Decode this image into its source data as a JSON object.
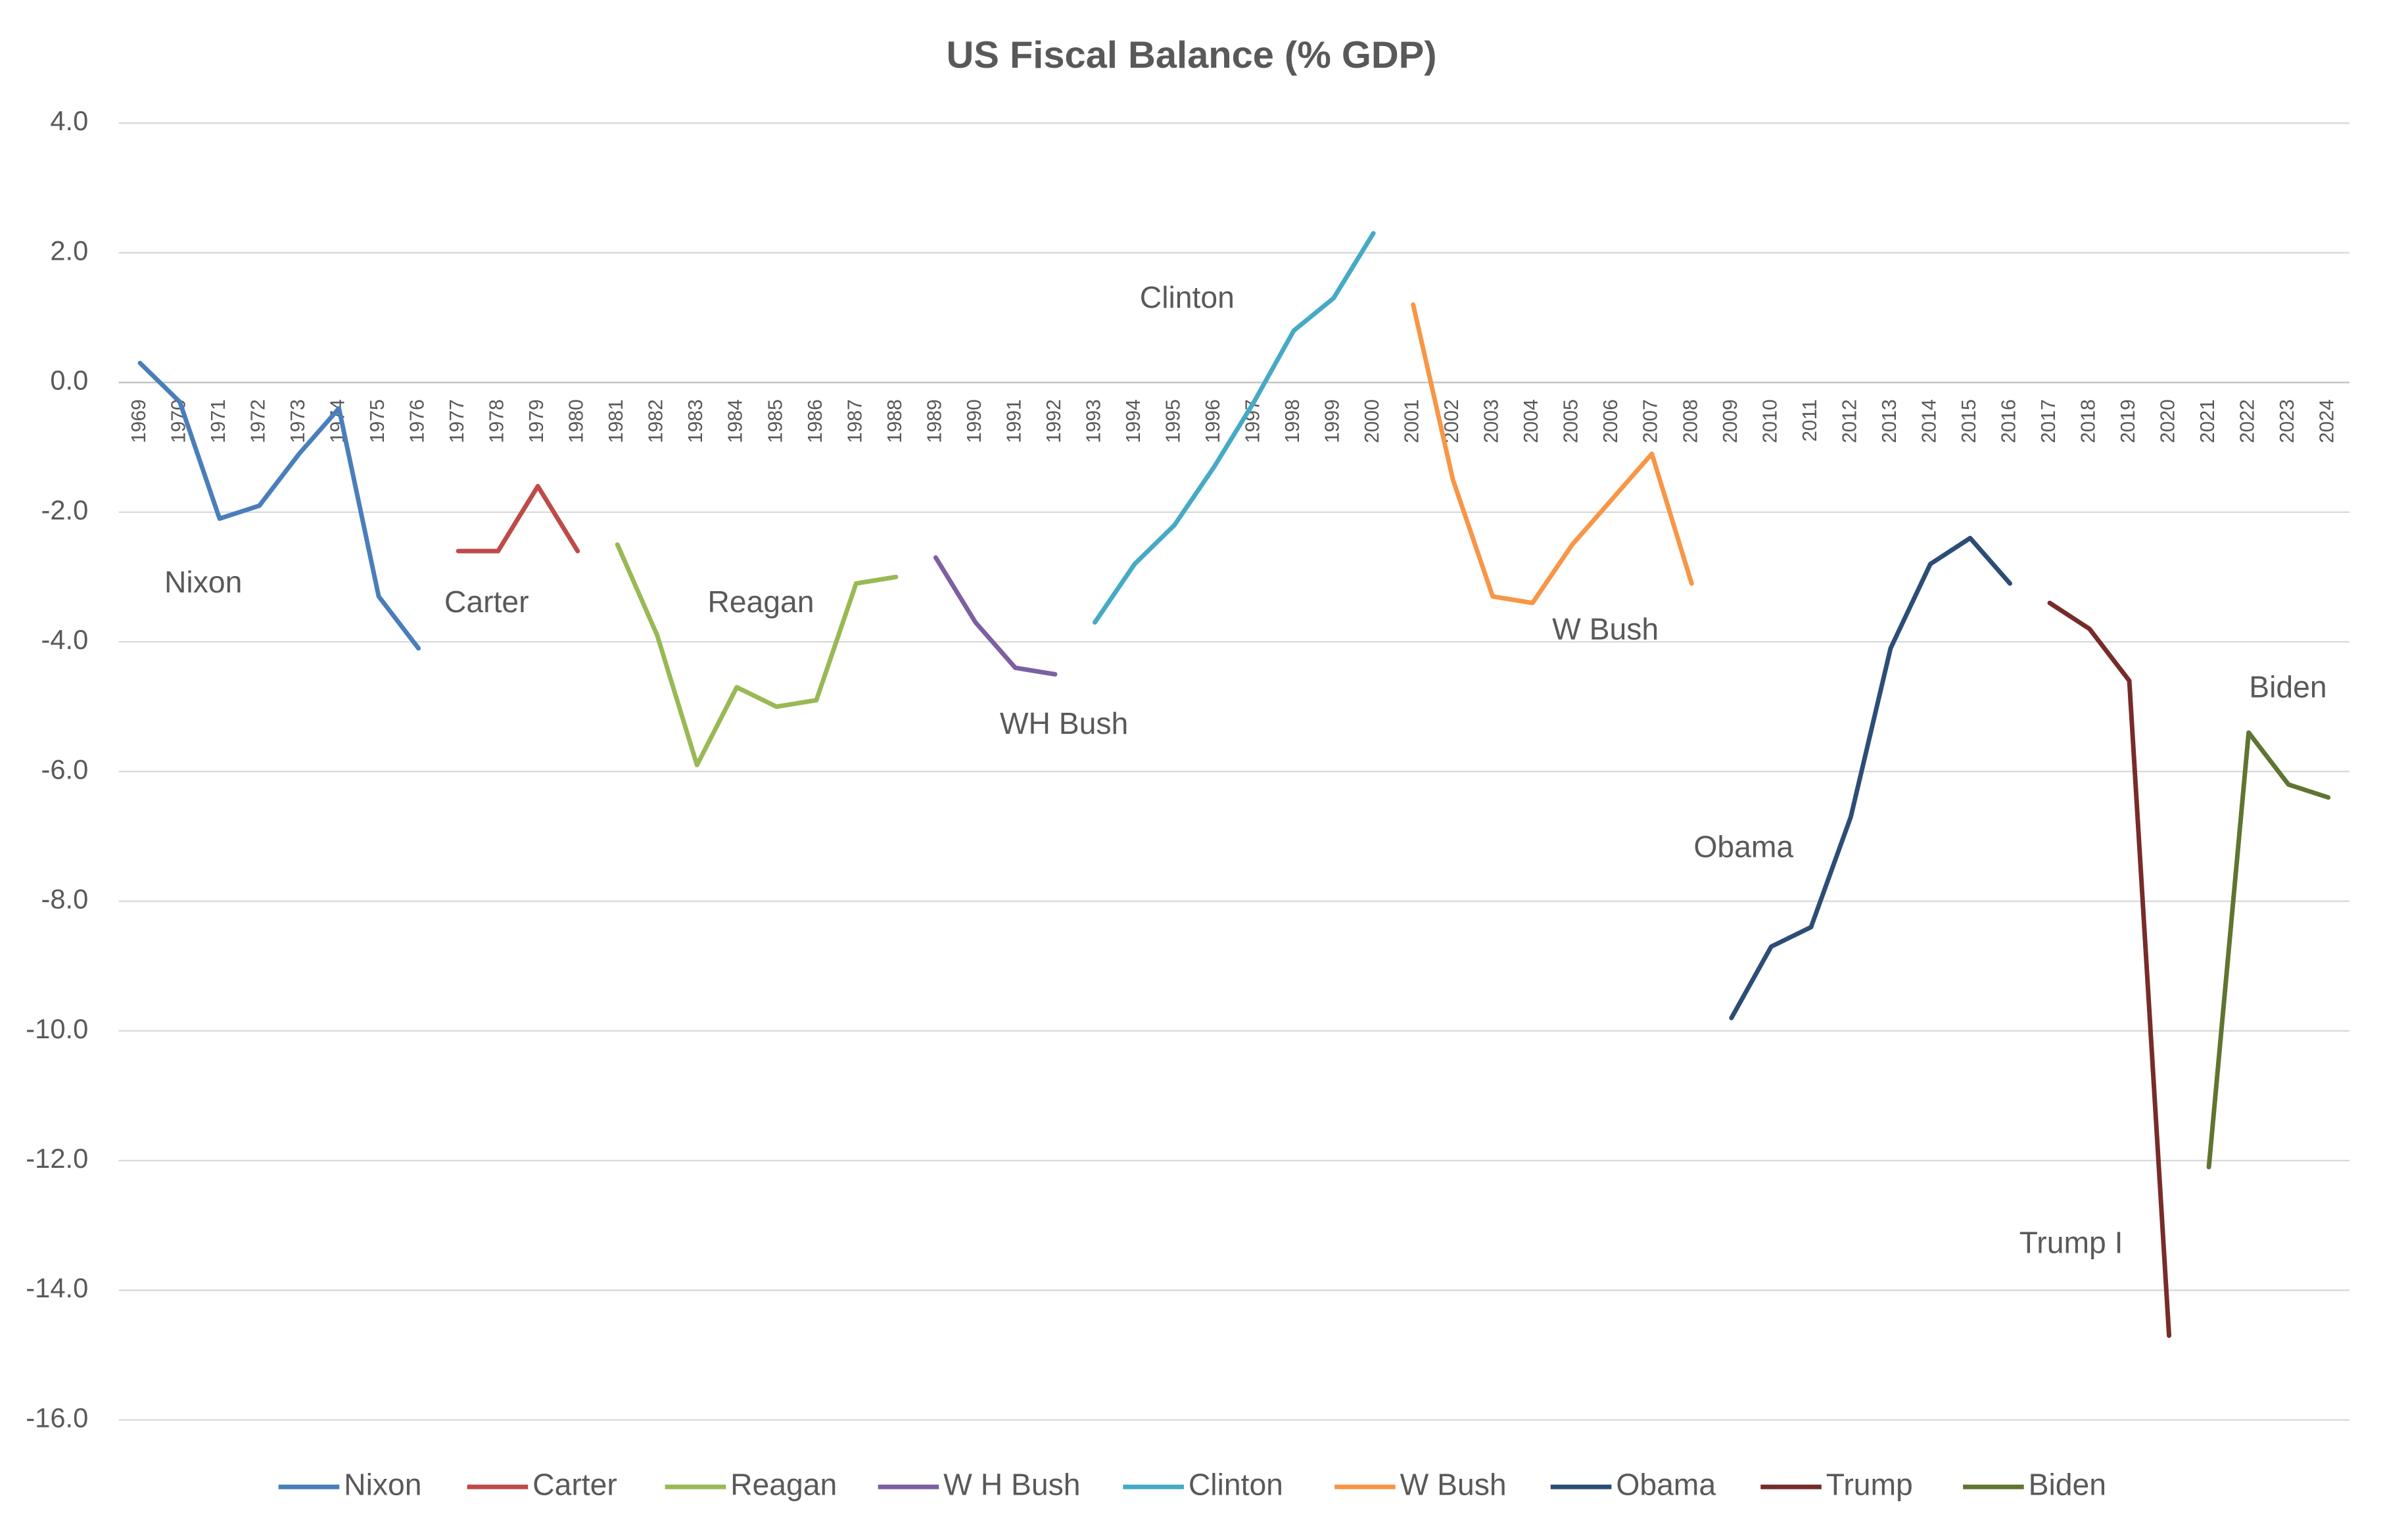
{
  "chart_data": {
    "type": "line",
    "title": "US Fiscal Balance (% GDP)",
    "categories": [
      "1969",
      "1970",
      "1971",
      "1972",
      "1973",
      "1974",
      "1975",
      "1976",
      "1977",
      "1978",
      "1979",
      "1980",
      "1981",
      "1982",
      "1983",
      "1984",
      "1985",
      "1986",
      "1987",
      "1988",
      "1989",
      "1990",
      "1991",
      "1992",
      "1993",
      "1994",
      "1995",
      "1996",
      "1997",
      "1998",
      "1999",
      "2000",
      "2001",
      "2002",
      "2003",
      "2004",
      "2005",
      "2006",
      "2007",
      "2008",
      "2009",
      "2010",
      "2011",
      "2012",
      "2013",
      "2014",
      "2015",
      "2016",
      "2017",
      "2018",
      "2019",
      "2020",
      "2021",
      "2022",
      "2023",
      "2024"
    ],
    "series": [
      {
        "name": "Nixon",
        "color": "#4a7ebb",
        "values": [
          0.3,
          -0.3,
          -2.1,
          -1.9,
          -1.1,
          -0.4,
          -3.3,
          -4.1,
          null,
          null,
          null,
          null,
          null,
          null,
          null,
          null,
          null,
          null,
          null,
          null,
          null,
          null,
          null,
          null,
          null,
          null,
          null,
          null,
          null,
          null,
          null,
          null,
          null,
          null,
          null,
          null,
          null,
          null,
          null,
          null,
          null,
          null,
          null,
          null,
          null,
          null,
          null,
          null,
          null,
          null,
          null,
          null,
          null,
          null,
          null,
          null
        ]
      },
      {
        "name": "Carter",
        "color": "#be4b48",
        "values": [
          null,
          null,
          null,
          null,
          null,
          null,
          null,
          null,
          -2.6,
          -2.6,
          -1.6,
          -2.6,
          null,
          null,
          null,
          null,
          null,
          null,
          null,
          null,
          null,
          null,
          null,
          null,
          null,
          null,
          null,
          null,
          null,
          null,
          null,
          null,
          null,
          null,
          null,
          null,
          null,
          null,
          null,
          null,
          null,
          null,
          null,
          null,
          null,
          null,
          null,
          null,
          null,
          null,
          null,
          null,
          null,
          null,
          null,
          null
        ]
      },
      {
        "name": "Reagan",
        "color": "#98b954",
        "values": [
          null,
          null,
          null,
          null,
          null,
          null,
          null,
          null,
          null,
          null,
          null,
          null,
          -2.5,
          -3.9,
          -5.9,
          -4.7,
          -5.0,
          -4.9,
          -3.1,
          -3.0,
          null,
          null,
          null,
          null,
          null,
          null,
          null,
          null,
          null,
          null,
          null,
          null,
          null,
          null,
          null,
          null,
          null,
          null,
          null,
          null,
          null,
          null,
          null,
          null,
          null,
          null,
          null,
          null,
          null,
          null,
          null,
          null,
          null,
          null,
          null,
          null
        ]
      },
      {
        "name": "W H Bush",
        "color": "#7d60a0",
        "values": [
          null,
          null,
          null,
          null,
          null,
          null,
          null,
          null,
          null,
          null,
          null,
          null,
          null,
          null,
          null,
          null,
          null,
          null,
          null,
          null,
          -2.7,
          -3.7,
          -4.4,
          -4.5,
          null,
          null,
          null,
          null,
          null,
          null,
          null,
          null,
          null,
          null,
          null,
          null,
          null,
          null,
          null,
          null,
          null,
          null,
          null,
          null,
          null,
          null,
          null,
          null,
          null,
          null,
          null,
          null,
          null,
          null,
          null,
          null
        ]
      },
      {
        "name": "Clinton",
        "color": "#46aac5",
        "values": [
          null,
          null,
          null,
          null,
          null,
          null,
          null,
          null,
          null,
          null,
          null,
          null,
          null,
          null,
          null,
          null,
          null,
          null,
          null,
          null,
          null,
          null,
          null,
          null,
          -3.7,
          -2.8,
          -2.2,
          -1.3,
          -0.3,
          0.8,
          1.3,
          2.3,
          null,
          null,
          null,
          null,
          null,
          null,
          null,
          null,
          null,
          null,
          null,
          null,
          null,
          null,
          null,
          null,
          null,
          null,
          null,
          null,
          null,
          null,
          null,
          null
        ]
      },
      {
        "name": "W Bush",
        "color": "#f79646",
        "values": [
          null,
          null,
          null,
          null,
          null,
          null,
          null,
          null,
          null,
          null,
          null,
          null,
          null,
          null,
          null,
          null,
          null,
          null,
          null,
          null,
          null,
          null,
          null,
          null,
          null,
          null,
          null,
          null,
          null,
          null,
          null,
          null,
          1.2,
          -1.5,
          -3.3,
          -3.4,
          -2.5,
          -1.8,
          -1.1,
          -3.1,
          null,
          null,
          null,
          null,
          null,
          null,
          null,
          null,
          null,
          null,
          null,
          null,
          null,
          null,
          null,
          null
        ]
      },
      {
        "name": "Obama",
        "color": "#2c4d75",
        "values": [
          null,
          null,
          null,
          null,
          null,
          null,
          null,
          null,
          null,
          null,
          null,
          null,
          null,
          null,
          null,
          null,
          null,
          null,
          null,
          null,
          null,
          null,
          null,
          null,
          null,
          null,
          null,
          null,
          null,
          null,
          null,
          null,
          null,
          null,
          null,
          null,
          null,
          null,
          null,
          null,
          -9.8,
          -8.7,
          -8.4,
          -6.7,
          -4.1,
          -2.8,
          -2.4,
          -3.1,
          null,
          null,
          null,
          null,
          null,
          null,
          null,
          null
        ]
      },
      {
        "name": "Trump",
        "color": "#772c2a",
        "values": [
          null,
          null,
          null,
          null,
          null,
          null,
          null,
          null,
          null,
          null,
          null,
          null,
          null,
          null,
          null,
          null,
          null,
          null,
          null,
          null,
          null,
          null,
          null,
          null,
          null,
          null,
          null,
          null,
          null,
          null,
          null,
          null,
          null,
          null,
          null,
          null,
          null,
          null,
          null,
          null,
          null,
          null,
          null,
          null,
          null,
          null,
          null,
          null,
          -3.4,
          -3.8,
          -4.6,
          -14.7,
          null,
          null,
          null,
          null
        ]
      },
      {
        "name": "Biden",
        "color": "#5f7530",
        "values": [
          null,
          null,
          null,
          null,
          null,
          null,
          null,
          null,
          null,
          null,
          null,
          null,
          null,
          null,
          null,
          null,
          null,
          null,
          null,
          null,
          null,
          null,
          null,
          null,
          null,
          null,
          null,
          null,
          null,
          null,
          null,
          null,
          null,
          null,
          null,
          null,
          null,
          null,
          null,
          null,
          null,
          null,
          null,
          null,
          null,
          null,
          null,
          null,
          null,
          null,
          null,
          null,
          -12.1,
          -5.4,
          -6.2,
          -6.4
        ]
      }
    ],
    "ylim": [
      -16,
      4
    ],
    "yticks": [
      {
        "value": -16,
        "label": "-16.0"
      },
      {
        "value": -14,
        "label": "-14.0"
      },
      {
        "value": -12,
        "label": "-12.0"
      },
      {
        "value": -10,
        "label": "-10.0"
      },
      {
        "value": -8,
        "label": "-8.0"
      },
      {
        "value": -6,
        "label": "-6.0"
      },
      {
        "value": -4,
        "label": "-4.0"
      },
      {
        "value": -2,
        "label": "-2.0"
      },
      {
        "value": 0,
        "label": "0.0"
      },
      {
        "value": 2,
        "label": "2.0"
      },
      {
        "value": 4,
        "label": "4.0"
      }
    ],
    "grid": true,
    "legend": "bottom",
    "annotations": [
      "Nixon",
      "Carter",
      "Reagan",
      "WH Bush",
      "Clinton",
      "W Bush",
      "Obama",
      "Trump I",
      "Biden"
    ]
  }
}
